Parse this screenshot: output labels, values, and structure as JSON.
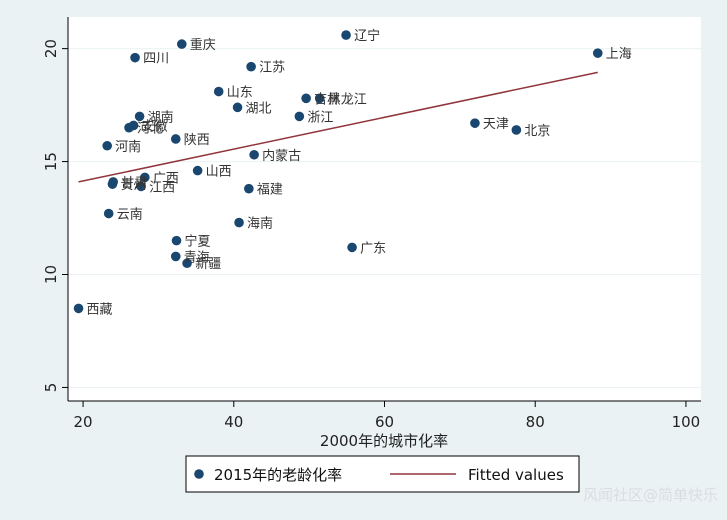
{
  "chart_data": {
    "type": "scatter",
    "title": "",
    "xlabel": "2000年的城市化率",
    "ylabel": "",
    "xlim": [
      18,
      102
    ],
    "ylim": [
      4.4,
      21.4
    ],
    "xticks": [
      20,
      40,
      60,
      80,
      100
    ],
    "yticks": [
      5,
      10,
      15,
      20
    ],
    "grid": "horizontal",
    "legend_position": "bottom",
    "colors": {
      "points": "#1a476f",
      "fit_line": "#90353b",
      "grid": "#eaf2f3"
    },
    "series": [
      {
        "name": "2015年的老龄化率",
        "kind": "scatter",
        "points": [
          {
            "label": "辽宁",
            "x": 54.9,
            "y": 20.6
          },
          {
            "label": "重庆",
            "x": 33.1,
            "y": 20.2
          },
          {
            "label": "四川",
            "x": 26.9,
            "y": 19.6
          },
          {
            "label": "上海",
            "x": 88.3,
            "y": 19.8
          },
          {
            "label": "江苏",
            "x": 42.3,
            "y": 19.2
          },
          {
            "label": "山东",
            "x": 38.0,
            "y": 18.1
          },
          {
            "label": "湖北",
            "x": 40.5,
            "y": 17.4
          },
          {
            "label": "吉林",
            "x": 49.6,
            "y": 17.8
          },
          {
            "label": "黑龙江",
            "x": 51.4,
            "y": 17.8
          },
          {
            "label": "浙江",
            "x": 48.7,
            "y": 17.0
          },
          {
            "label": "湖南",
            "x": 27.5,
            "y": 17.0
          },
          {
            "label": "河北",
            "x": 26.1,
            "y": 16.5
          },
          {
            "label": "安徽",
            "x": 26.7,
            "y": 16.6
          },
          {
            "label": "陕西",
            "x": 32.3,
            "y": 16.0
          },
          {
            "label": "天津",
            "x": 72.0,
            "y": 16.7
          },
          {
            "label": "北京",
            "x": 77.5,
            "y": 16.4
          },
          {
            "label": "河南",
            "x": 23.2,
            "y": 15.7
          },
          {
            "label": "内蒙古",
            "x": 42.7,
            "y": 15.3
          },
          {
            "label": "山西",
            "x": 35.2,
            "y": 14.6
          },
          {
            "label": "广西",
            "x": 28.2,
            "y": 14.3
          },
          {
            "label": "甘肃",
            "x": 24.0,
            "y": 14.1
          },
          {
            "label": "贵州",
            "x": 23.9,
            "y": 14.0
          },
          {
            "label": "江西",
            "x": 27.7,
            "y": 13.9
          },
          {
            "label": "福建",
            "x": 42.0,
            "y": 13.8
          },
          {
            "label": "云南",
            "x": 23.4,
            "y": 12.7
          },
          {
            "label": "海南",
            "x": 40.7,
            "y": 12.3
          },
          {
            "label": "宁夏",
            "x": 32.4,
            "y": 11.5
          },
          {
            "label": "广东",
            "x": 55.7,
            "y": 11.2
          },
          {
            "label": "青海",
            "x": 32.3,
            "y": 10.8
          },
          {
            "label": "新疆",
            "x": 33.8,
            "y": 10.5
          },
          {
            "label": "西藏",
            "x": 19.4,
            "y": 8.5
          }
        ]
      },
      {
        "name": "Fitted values",
        "kind": "line",
        "points": [
          {
            "x": 19.4,
            "y": 14.1
          },
          {
            "x": 88.3,
            "y": 18.95
          }
        ]
      }
    ]
  },
  "watermark": "风闻社区@简单快乐"
}
